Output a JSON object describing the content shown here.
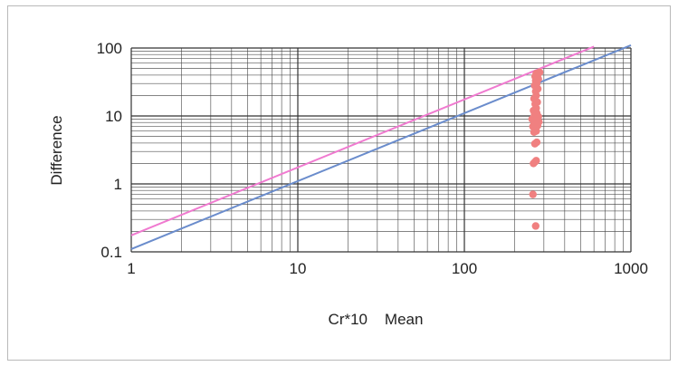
{
  "chart_data": {
    "type": "scatter",
    "title": "",
    "xlabel": "Cr*10    Mean",
    "ylabel": "Difference",
    "x_scale": "log",
    "y_scale": "log",
    "xlim": [
      1,
      1000
    ],
    "ylim": [
      0.1,
      100
    ],
    "x_ticks": [
      "1",
      "10",
      "100",
      "1000"
    ],
    "y_ticks": [
      "0.1",
      "1",
      "10",
      "100"
    ],
    "grid": true,
    "legend": "none",
    "colors": {
      "points": "#f08080",
      "line_lower": "#6a8ccc",
      "line_upper": "#f07ad0",
      "grid": "#444444"
    },
    "lines": [
      {
        "color_key": "line_lower",
        "points": [
          [
            1,
            0.11
          ],
          [
            1000,
            110
          ]
        ]
      },
      {
        "color_key": "line_upper",
        "points": [
          [
            1,
            0.175
          ],
          [
            600,
            105
          ]
        ]
      }
    ],
    "points": [
      [
        268,
        0.24
      ],
      [
        258,
        0.7
      ],
      [
        260,
        2.0
      ],
      [
        265,
        2.1
      ],
      [
        270,
        2.2
      ],
      [
        265,
        3.9
      ],
      [
        272,
        4.1
      ],
      [
        262,
        5.8
      ],
      [
        270,
        6.0
      ],
      [
        258,
        7.0
      ],
      [
        265,
        7.5
      ],
      [
        275,
        7.2
      ],
      [
        262,
        8.0
      ],
      [
        270,
        8.5
      ],
      [
        280,
        8.2
      ],
      [
        255,
        9.0
      ],
      [
        268,
        9.5
      ],
      [
        278,
        9.8
      ],
      [
        264,
        10.5
      ],
      [
        272,
        11.0
      ],
      [
        260,
        12.0
      ],
      [
        270,
        13.0
      ],
      [
        266,
        15.0
      ],
      [
        274,
        16.0
      ],
      [
        262,
        18.0
      ],
      [
        270,
        20.0
      ],
      [
        268,
        23.0
      ],
      [
        276,
        25.0
      ],
      [
        264,
        28.0
      ],
      [
        272,
        30.0
      ],
      [
        268,
        33.0
      ],
      [
        278,
        35.0
      ],
      [
        266,
        38.0
      ],
      [
        275,
        40.0
      ],
      [
        270,
        42.0
      ],
      [
        283,
        44.0
      ]
    ]
  }
}
